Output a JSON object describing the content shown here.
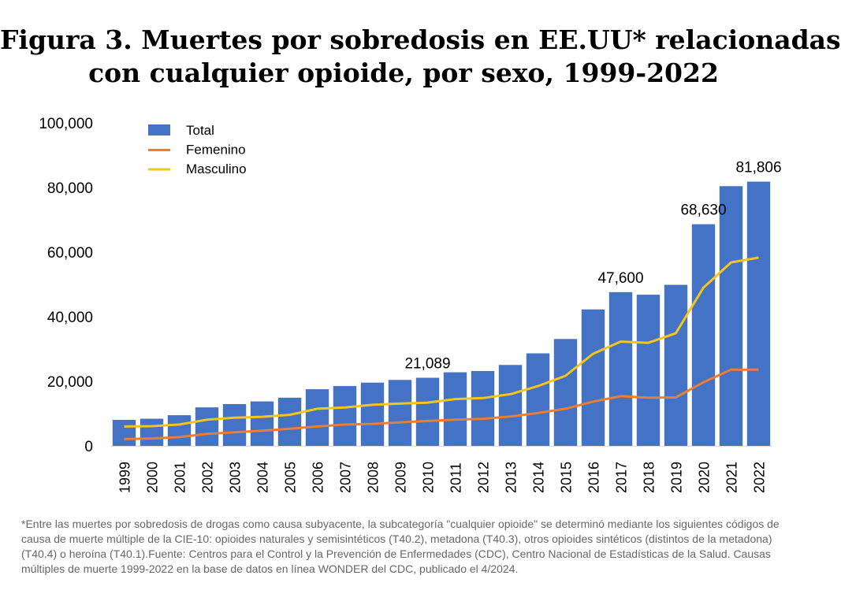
{
  "title": {
    "line1": "Figura 3. Muertes por sobredosis en EE.UU* relacionadas",
    "line2": "con cualquier opioide, por sexo, 1999-2022"
  },
  "chart_data": {
    "type": "bar",
    "categories": [
      "1999",
      "2000",
      "2001",
      "2002",
      "2003",
      "2004",
      "2005",
      "2006",
      "2007",
      "2008",
      "2009",
      "2010",
      "2011",
      "2012",
      "2013",
      "2014",
      "2015",
      "2016",
      "2017",
      "2018",
      "2019",
      "2020",
      "2021",
      "2022"
    ],
    "series": [
      {
        "name": "Total",
        "type": "bar",
        "color": "#4472C4",
        "values": [
          8048,
          8407,
          9496,
          11920,
          12940,
          13756,
          14918,
          17545,
          18516,
          19582,
          20422,
          21089,
          22784,
          23166,
          25052,
          28647,
          33091,
          42249,
          47600,
          46802,
          49860,
          68630,
          80411,
          81806
        ]
      },
      {
        "name": "Femenino",
        "type": "line",
        "color": "#ED7D31",
        "values": [
          2100,
          2300,
          2700,
          3700,
          4200,
          4700,
          5300,
          6000,
          6600,
          6800,
          7300,
          7700,
          8100,
          8400,
          9100,
          10200,
          11500,
          13700,
          15400,
          14900,
          15000,
          19700,
          23600,
          23600
        ]
      },
      {
        "name": "Masculino",
        "type": "line",
        "color": "#F5C518",
        "values": [
          6000,
          6100,
          6600,
          8100,
          8700,
          9000,
          9600,
          11500,
          11900,
          12700,
          13100,
          13400,
          14500,
          14800,
          16000,
          18500,
          21700,
          28500,
          32300,
          31900,
          34900,
          49000,
          56800,
          58300
        ]
      }
    ],
    "data_labels": [
      {
        "category": "2010",
        "text": "21,089"
      },
      {
        "category": "2017",
        "text": "47,600"
      },
      {
        "category": "2020",
        "text": "68,630"
      },
      {
        "category": "2022",
        "text": "81,806"
      }
    ],
    "ylim": [
      0,
      100000
    ],
    "yticks": [
      "0",
      "20,000",
      "40,000",
      "60,000",
      "80,000",
      "100,000"
    ],
    "ytick_values": [
      0,
      20000,
      40000,
      60000,
      80000,
      100000
    ],
    "xlabel": "",
    "ylabel": "",
    "grid": false,
    "legend_position": "top-left"
  },
  "footnote": "*Entre las muertes por sobredosis de drogas como causa subyacente, la subcategoría \"cualquier opioide\" se determinó mediante los siguientes códigos de causa de muerte múltiple de la CIE-10: opioides naturales y semisintéticos (T40.2), metadona (T40.3), otros opioides sintéticos (distintos de la metadona) (T40.4) o heroína (T40.1).Fuente: Centros para el Control y la Prevención de Enfermedades (CDC), Centro Nacional de Estadísticas de la Salud. Causas múltiples de muerte 1999-2022 en la base de datos en línea WONDER del CDC, publicado el 4/2024."
}
